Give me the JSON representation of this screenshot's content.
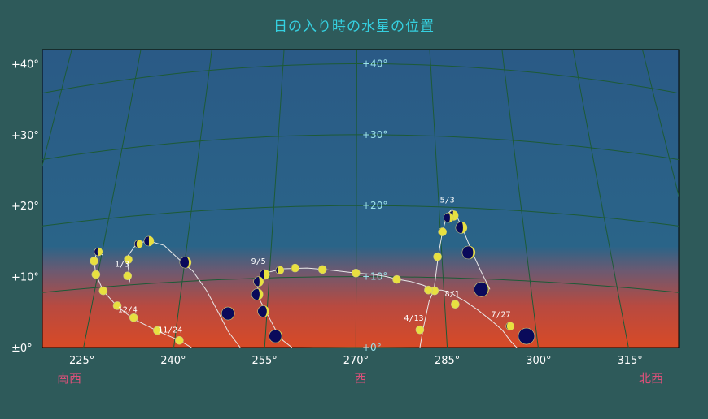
{
  "title": "日の入り時の水星の位置",
  "colors": {
    "background": "#2e5a5a",
    "sky_top": "#2a5a86",
    "horizon": "#d84a26",
    "grid": "#1d5a36",
    "path": "#e8e8e8",
    "planet_lit": "#e8e040",
    "planet_dark": "#0a0a5a",
    "title": "#35d0e0",
    "direction": "#e0507a",
    "inner_label": "#9be0e8"
  },
  "y_axis_labels": [
    "±0°",
    "+10°",
    "+20°",
    "+30°",
    "+40°"
  ],
  "inner_alt_labels": [
    "+0°",
    "+10°",
    "+20°",
    "+30°",
    "+40°"
  ],
  "x_axis_labels": [
    "225°",
    "240°",
    "255°",
    "270°",
    "285°",
    "300°",
    "315°"
  ],
  "direction_labels": {
    "southwest": "南西",
    "west": "西",
    "northwest": "北西"
  },
  "chart_data": {
    "type": "scatter",
    "title": "日の入り時の水星の位置",
    "xlim": [
      218.5,
      323
    ],
    "ylim": [
      0,
      42
    ],
    "x_ticks": [
      225,
      240,
      255,
      270,
      285,
      300,
      315
    ],
    "y_ticks": [
      0,
      10,
      20,
      30,
      40
    ],
    "grid": true,
    "path": [
      [
        297.5,
        -1
      ],
      [
        295.5,
        0.8
      ],
      [
        294,
        2.5
      ],
      [
        292.5,
        3.6
      ],
      [
        290,
        5.3
      ],
      [
        288,
        6.5
      ],
      [
        286.5,
        7.2
      ],
      [
        285.5,
        7.8
      ],
      [
        284,
        8.1
      ],
      [
        283,
        8.1
      ],
      [
        281,
        8.8
      ],
      [
        279,
        9.3
      ],
      [
        277,
        9.6
      ],
      [
        275,
        10.0
      ],
      [
        273,
        10.3
      ],
      [
        270,
        10.5
      ],
      [
        266,
        10.9
      ],
      [
        262,
        11.2
      ],
      [
        258,
        11.1
      ],
      [
        255.5,
        10.6
      ],
      [
        254.5,
        9.8
      ],
      [
        254,
        9.0
      ],
      [
        253.8,
        8.0
      ],
      [
        254,
        7.0
      ],
      [
        254.8,
        5.8
      ],
      [
        256,
        3.8
      ],
      [
        257,
        2.2
      ],
      [
        258,
        1.0
      ],
      [
        259.5,
        0
      ]
    ],
    "path2": [
      [
        280.5,
        0
      ],
      [
        281,
        2.5
      ],
      [
        282,
        6.5
      ],
      [
        282.8,
        8.1
      ],
      [
        283.5,
        12.8
      ],
      [
        284.2,
        16.3
      ],
      [
        285,
        18.8
      ],
      [
        285.8,
        19.5
      ],
      [
        286.5,
        18.6
      ],
      [
        287.5,
        16.8
      ],
      [
        289,
        13.6
      ],
      [
        290.5,
        10.8
      ],
      [
        292,
        8.2
      ]
    ],
    "path3": [
      [
        251,
        0
      ],
      [
        249,
        2.3
      ],
      [
        247.5,
        4.8
      ],
      [
        245.5,
        8
      ],
      [
        243.2,
        10.8
      ],
      [
        241.5,
        12.0
      ],
      [
        238.5,
        14.4
      ],
      [
        236,
        15.0
      ],
      [
        234.5,
        14.8
      ],
      [
        233.8,
        14.4
      ],
      [
        232.6,
        13.0
      ],
      [
        232.4,
        12.4
      ],
      [
        232.6,
        11.2
      ],
      [
        232.9,
        9.8
      ],
      [
        232.8,
        9.2
      ]
    ],
    "path4": [
      [
        228.5,
        13.0
      ],
      [
        227.5,
        13.5
      ],
      [
        227,
        12.2
      ],
      [
        227.3,
        10.3
      ],
      [
        228.5,
        8.0
      ],
      [
        230.8,
        5.8
      ],
      [
        233.5,
        4.0
      ],
      [
        237.5,
        2.3
      ],
      [
        241,
        1.0
      ],
      [
        243,
        0
      ]
    ],
    "points": [
      {
        "x": 298,
        "y": 1.6,
        "size": 10,
        "lit": 0.0
      },
      {
        "x": 295.3,
        "y": 3.0,
        "size": 5,
        "lit": 0.9
      },
      {
        "x": 290.6,
        "y": 8.2,
        "size": 9,
        "lit": 0.05
      },
      {
        "x": 288.5,
        "y": 13.4,
        "size": 8,
        "lit": 0.15
      },
      {
        "x": 287.3,
        "y": 16.9,
        "size": 7,
        "lit": 0.35
      },
      {
        "x": 286,
        "y": 18.6,
        "size": 6,
        "lit": 0.55
      },
      {
        "x": 285.2,
        "y": 18.3,
        "size": 6,
        "lit": 0.35
      },
      {
        "x": 284.2,
        "y": 16.3,
        "size": 5,
        "lit": 0.9
      },
      {
        "x": 283.4,
        "y": 12.8,
        "size": 5,
        "lit": 1
      },
      {
        "x": 286.3,
        "y": 6.1,
        "size": 5,
        "lit": 1
      },
      {
        "x": 282.9,
        "y": 8.0,
        "size": 5,
        "lit": 1
      },
      {
        "x": 281.9,
        "y": 8.1,
        "size": 5,
        "lit": 1
      },
      {
        "x": 280.5,
        "y": 2.5,
        "size": 5,
        "lit": 1
      },
      {
        "x": 276.7,
        "y": 9.6,
        "size": 5,
        "lit": 1
      },
      {
        "x": 270.0,
        "y": 10.5,
        "size": 5,
        "lit": 1
      },
      {
        "x": 264.5,
        "y": 11.0,
        "size": 5,
        "lit": 1
      },
      {
        "x": 260.0,
        "y": 11.2,
        "size": 5,
        "lit": 0.95
      },
      {
        "x": 257.5,
        "y": 10.9,
        "size": 5,
        "lit": 0.8
      },
      {
        "x": 255.0,
        "y": 10.3,
        "size": 6,
        "lit": 0.6
      },
      {
        "x": 254.0,
        "y": 9.3,
        "size": 6,
        "lit": 0.4
      },
      {
        "x": 253.8,
        "y": 7.5,
        "size": 7,
        "lit": 0.3
      },
      {
        "x": 254.8,
        "y": 5.1,
        "size": 7,
        "lit": 0.2
      },
      {
        "x": 256.8,
        "y": 1.6,
        "size": 8,
        "lit": 0.05
      },
      {
        "x": 249.0,
        "y": 4.8,
        "size": 8,
        "lit": 0.05
      },
      {
        "x": 242.0,
        "y": 12.0,
        "size": 7,
        "lit": 0.2
      },
      {
        "x": 236.0,
        "y": 15.0,
        "size": 6,
        "lit": 0.5
      },
      {
        "x": 234.3,
        "y": 14.6,
        "size": 5,
        "lit": 0.75
      },
      {
        "x": 232.6,
        "y": 12.4,
        "size": 5,
        "lit": 0.95
      },
      {
        "x": 232.5,
        "y": 10.1,
        "size": 5,
        "lit": 1
      },
      {
        "x": 227.7,
        "y": 13.5,
        "size": 5,
        "lit": 0.6
      },
      {
        "x": 227.0,
        "y": 12.2,
        "size": 5,
        "lit": 1
      },
      {
        "x": 227.3,
        "y": 10.3,
        "size": 5,
        "lit": 1
      },
      {
        "x": 228.5,
        "y": 8.0,
        "size": 5,
        "lit": 1
      },
      {
        "x": 230.8,
        "y": 5.9,
        "size": 5,
        "lit": 1
      },
      {
        "x": 233.5,
        "y": 4.2,
        "size": 5,
        "lit": 1
      },
      {
        "x": 237.4,
        "y": 2.4,
        "size": 5,
        "lit": 1
      },
      {
        "x": 241.0,
        "y": 1.0,
        "size": 5,
        "lit": 1
      }
    ],
    "date_labels": [
      {
        "text": "5/3",
        "x": 285.0,
        "y": 20.4
      },
      {
        "text": "8/1",
        "x": 285.8,
        "y": 7.2
      },
      {
        "text": "7/27",
        "x": 293.8,
        "y": 4.3
      },
      {
        "text": "4/13",
        "x": 279.5,
        "y": 3.8
      },
      {
        "text": "9/5",
        "x": 254.0,
        "y": 11.8
      },
      {
        "text": "1/3",
        "x": 231.6,
        "y": 11.4
      },
      {
        "text": "12/4",
        "x": 232.5,
        "y": 5.0
      },
      {
        "text": "11/24",
        "x": 239.5,
        "y": 2.1
      }
    ]
  }
}
